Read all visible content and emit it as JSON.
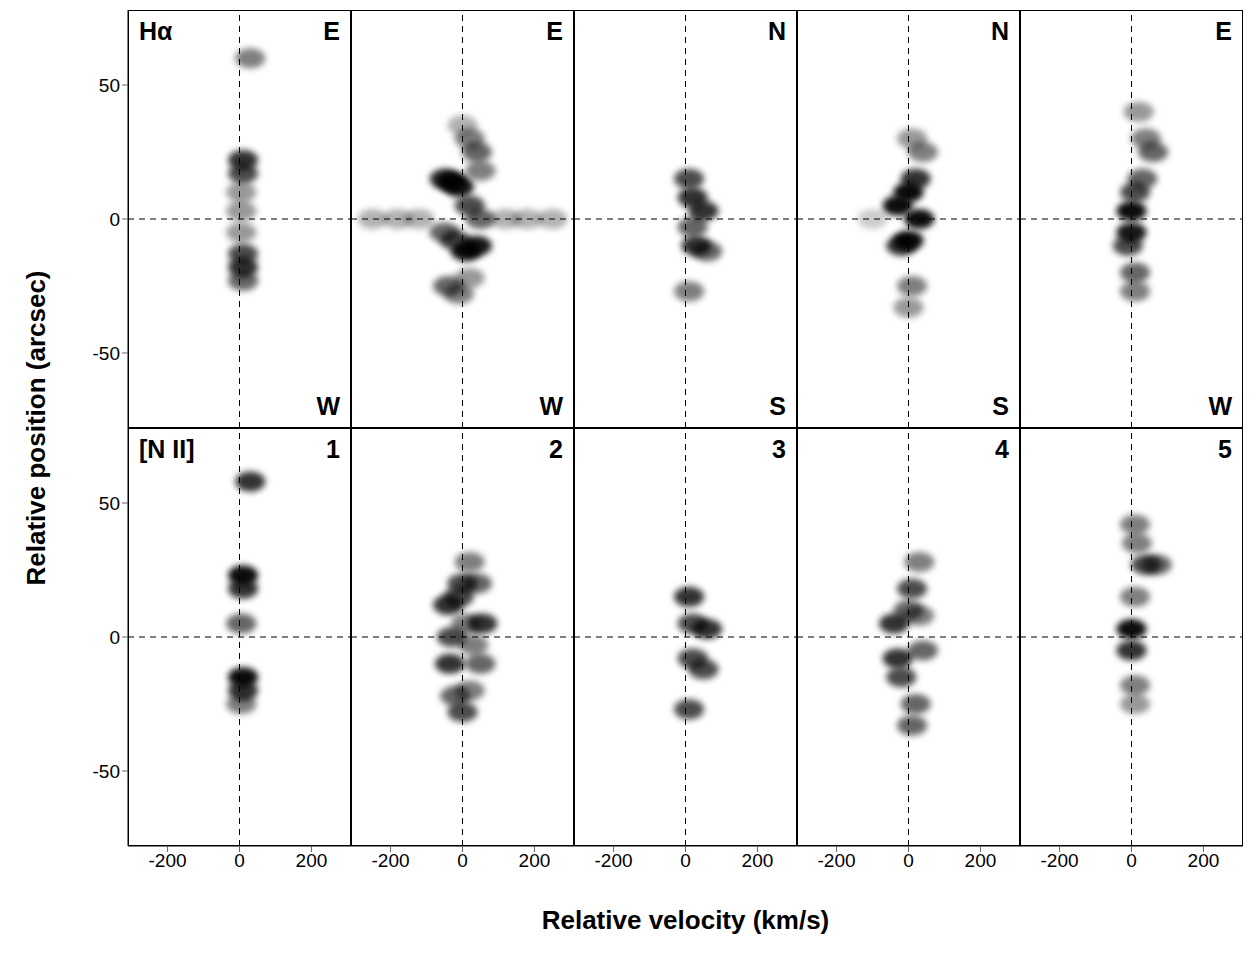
{
  "xlabel": "Relative velocity (km/s)",
  "ylabel": "Relative position (arcsec)",
  "chart_data": [
    {
      "type": "scatter",
      "row": 0,
      "col": 0,
      "tick_labels": "y",
      "color": "#000000",
      "xlim": [
        -310,
        310
      ],
      "ylim": [
        -78,
        78
      ],
      "xticks": [
        -200,
        0,
        200
      ],
      "yticks": [
        -50,
        0,
        50
      ],
      "crosshair": {
        "x": 0,
        "y": 0
      },
      "annotations": {
        "top_left": "Hα",
        "top_right": "E",
        "bottom_right": "W"
      },
      "x": [
        30,
        10,
        10,
        5,
        5,
        5,
        10,
        10,
        10
      ],
      "y": [
        60,
        22,
        17,
        10,
        3,
        -5,
        -13,
        -18,
        -23
      ],
      "intensity": [
        0.5,
        0.8,
        0.7,
        0.4,
        0.4,
        0.4,
        0.7,
        0.8,
        0.6
      ]
    },
    {
      "type": "scatter",
      "row": 0,
      "col": 1,
      "tick_labels": false,
      "color": "#000000",
      "xlim": [
        -310,
        310
      ],
      "ylim": [
        -78,
        78
      ],
      "xticks": [
        -200,
        0,
        200
      ],
      "yticks": [
        -50,
        0,
        50
      ],
      "crosshair": {
        "x": 0,
        "y": 0
      },
      "annotations": {
        "top_right": "E",
        "bottom_right": "W"
      },
      "x": [
        -50,
        -30,
        -10,
        20,
        50,
        40,
        10,
        -20,
        -50,
        40,
        20,
        50,
        -40,
        -10,
        20,
        0,
        -250,
        -180,
        -120,
        120,
        180,
        250
      ],
      "y": [
        15,
        14,
        12,
        5,
        0,
        -10,
        -12,
        -8,
        -5,
        25,
        30,
        18,
        -25,
        -28,
        -22,
        35,
        0,
        0,
        0,
        0,
        0,
        0
      ],
      "intensity": [
        0.8,
        0.95,
        0.9,
        0.7,
        0.6,
        0.9,
        0.95,
        0.7,
        0.6,
        0.6,
        0.5,
        0.5,
        0.6,
        0.5,
        0.4,
        0.3,
        0.3,
        0.3,
        0.3,
        0.3,
        0.3,
        0.3
      ]
    },
    {
      "type": "scatter",
      "row": 0,
      "col": 2,
      "tick_labels": false,
      "color": "#000000",
      "xlim": [
        -310,
        310
      ],
      "ylim": [
        -78,
        78
      ],
      "xticks": [
        -200,
        0,
        200
      ],
      "yticks": [
        -50,
        0,
        50
      ],
      "crosshair": {
        "x": 0,
        "y": 0
      },
      "annotations": {
        "top_right": "N",
        "bottom_right": "S"
      },
      "x": [
        10,
        20,
        50,
        20,
        30,
        60,
        10
      ],
      "y": [
        15,
        8,
        3,
        -3,
        -10,
        -12,
        -27
      ],
      "intensity": [
        0.7,
        0.8,
        0.8,
        0.6,
        0.8,
        0.6,
        0.5
      ]
    },
    {
      "type": "scatter",
      "row": 0,
      "col": 3,
      "tick_labels": false,
      "color": "#000000",
      "xlim": [
        -310,
        310
      ],
      "ylim": [
        -78,
        78
      ],
      "xticks": [
        -200,
        0,
        200
      ],
      "yticks": [
        -50,
        0,
        50
      ],
      "crosshair": {
        "x": 0,
        "y": 0
      },
      "annotations": {
        "top_right": "N",
        "bottom_right": "S"
      },
      "x": [
        0,
        -30,
        30,
        0,
        -20,
        20,
        40,
        10,
        10,
        0,
        -100
      ],
      "y": [
        10,
        5,
        0,
        -8,
        -10,
        15,
        25,
        30,
        -25,
        -33,
        0
      ],
      "intensity": [
        0.95,
        0.95,
        0.95,
        0.95,
        0.8,
        0.8,
        0.5,
        0.4,
        0.5,
        0.4,
        0.2
      ]
    },
    {
      "type": "scatter",
      "row": 0,
      "col": 4,
      "tick_labels": false,
      "color": "#000000",
      "xlim": [
        -310,
        310
      ],
      "ylim": [
        -78,
        78
      ],
      "xticks": [
        -200,
        0,
        200
      ],
      "yticks": [
        -50,
        0,
        50
      ],
      "crosshair": {
        "x": 0,
        "y": 0
      },
      "annotations": {
        "top_right": "E",
        "bottom_right": "W"
      },
      "x": [
        0,
        0,
        -10,
        10,
        10,
        30,
        60,
        40,
        20,
        10
      ],
      "y": [
        3,
        -5,
        -10,
        -20,
        -27,
        15,
        25,
        30,
        40,
        10
      ],
      "intensity": [
        0.95,
        0.9,
        0.7,
        0.6,
        0.5,
        0.6,
        0.6,
        0.5,
        0.4,
        0.7
      ]
    },
    {
      "type": "scatter",
      "row": 1,
      "col": 0,
      "tick_labels": true,
      "color": "#000000",
      "xlim": [
        -310,
        310
      ],
      "ylim": [
        -78,
        78
      ],
      "xticks": [
        -200,
        0,
        200
      ],
      "yticks": [
        -50,
        0,
        50
      ],
      "crosshair": {
        "x": 0,
        "y": 0
      },
      "annotations": {
        "top_left": "[N II]",
        "top_right": "1"
      },
      "x": [
        30,
        10,
        10,
        5,
        10,
        10,
        5
      ],
      "y": [
        58,
        23,
        18,
        5,
        -15,
        -20,
        -25
      ],
      "intensity": [
        0.8,
        0.95,
        0.8,
        0.6,
        0.95,
        0.8,
        0.5
      ]
    },
    {
      "type": "scatter",
      "row": 1,
      "col": 1,
      "tick_labels": "x",
      "color": "#000000",
      "xlim": [
        -310,
        310
      ],
      "ylim": [
        -78,
        78
      ],
      "xticks": [
        -200,
        0,
        200
      ],
      "yticks": [
        -50,
        0,
        50
      ],
      "crosshair": {
        "x": 0,
        "y": 0
      },
      "annotations": {
        "top_right": "2"
      },
      "x": [
        -40,
        -30,
        -35,
        -20,
        0,
        20,
        50,
        55,
        40,
        20,
        0,
        -10,
        30,
        10
      ],
      "y": [
        12,
        0,
        -10,
        -22,
        -28,
        -20,
        -10,
        5,
        20,
        28,
        20,
        15,
        -3,
        5
      ],
      "intensity": [
        0.8,
        0.7,
        0.8,
        0.6,
        0.7,
        0.5,
        0.6,
        0.8,
        0.6,
        0.5,
        0.7,
        0.7,
        0.5,
        0.5
      ]
    },
    {
      "type": "scatter",
      "row": 1,
      "col": 2,
      "tick_labels": "x",
      "color": "#000000",
      "xlim": [
        -310,
        310
      ],
      "ylim": [
        -78,
        78
      ],
      "xticks": [
        -200,
        0,
        200
      ],
      "yticks": [
        -50,
        0,
        50
      ],
      "crosshair": {
        "x": 0,
        "y": 0
      },
      "annotations": {
        "top_right": "3"
      },
      "x": [
        10,
        20,
        60,
        20,
        50,
        10
      ],
      "y": [
        15,
        5,
        3,
        -8,
        -12,
        -27
      ],
      "intensity": [
        0.8,
        0.7,
        0.8,
        0.7,
        0.7,
        0.7
      ]
    },
    {
      "type": "scatter",
      "row": 1,
      "col": 3,
      "tick_labels": "x",
      "color": "#000000",
      "xlim": [
        -310,
        310
      ],
      "ylim": [
        -78,
        78
      ],
      "xticks": [
        -200,
        0,
        200
      ],
      "yticks": [
        -50,
        0,
        50
      ],
      "crosshair": {
        "x": 0,
        "y": 0
      },
      "annotations": {
        "top_right": "4"
      },
      "x": [
        -40,
        -30,
        -20,
        0,
        30,
        40,
        10,
        30,
        20,
        10
      ],
      "y": [
        5,
        -8,
        -15,
        10,
        8,
        -5,
        18,
        28,
        -25,
        -33
      ],
      "intensity": [
        0.8,
        0.8,
        0.7,
        0.6,
        0.5,
        0.6,
        0.7,
        0.5,
        0.6,
        0.6
      ]
    },
    {
      "type": "scatter",
      "row": 1,
      "col": 4,
      "tick_labels": "x",
      "color": "#000000",
      "xlim": [
        -310,
        310
      ],
      "ylim": [
        -78,
        78
      ],
      "xticks": [
        -200,
        0,
        200
      ],
      "yticks": [
        -50,
        0,
        50
      ],
      "crosshair": {
        "x": 0,
        "y": 0
      },
      "annotations": {
        "top_right": "5"
      },
      "x": [
        0,
        0,
        10,
        10,
        40,
        70,
        10,
        15,
        10
      ],
      "y": [
        3,
        -5,
        -18,
        -25,
        27,
        27,
        42,
        35,
        15
      ],
      "intensity": [
        0.95,
        0.8,
        0.5,
        0.4,
        0.7,
        0.6,
        0.5,
        0.5,
        0.5
      ]
    }
  ]
}
